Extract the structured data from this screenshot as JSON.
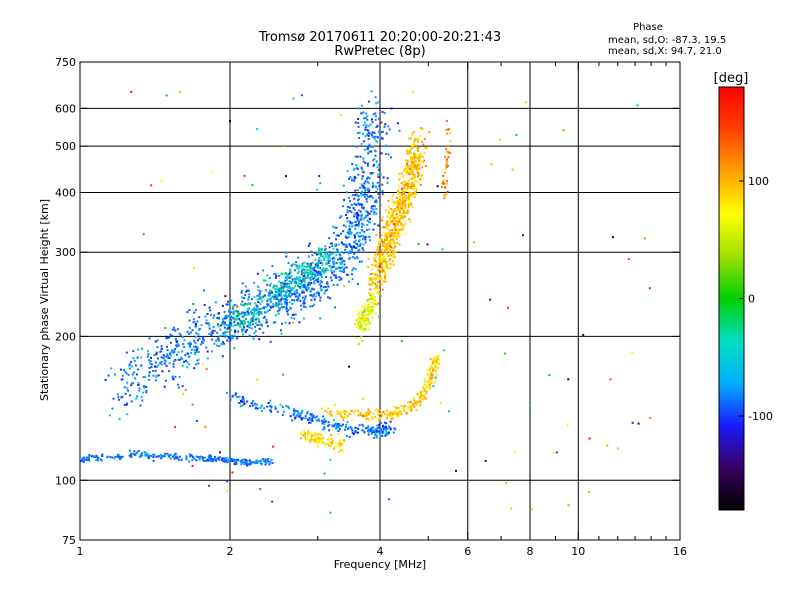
{
  "chart_data": {
    "type": "scatter",
    "title": "Tromsø 20170611 20:20:00-20:21:43",
    "subtitle": "RwPretec (8p)",
    "xlabel": "Frequency [MHz]",
    "ylabel": "Stationary phase Virtual Height [km]",
    "x_scale": "log",
    "y_scale": "log",
    "xlim": [
      1,
      16
    ],
    "ylim": [
      75,
      750
    ],
    "x_ticks": [
      1,
      2,
      4,
      6,
      8,
      10,
      16
    ],
    "x_tick_labels": [
      "1",
      "2",
      "4",
      "6",
      "8",
      "10",
      "16"
    ],
    "x_gridlines": [
      2,
      4,
      6,
      8,
      10
    ],
    "y_ticks": [
      75,
      100,
      200,
      300,
      400,
      500,
      600,
      750
    ],
    "y_tick_labels": [
      "75",
      "100",
      "200",
      "300",
      "400",
      "500",
      "600",
      "750"
    ],
    "y_gridlines": [
      100,
      200,
      300,
      400,
      500,
      600
    ],
    "grid": true,
    "colorbar": {
      "label": "[deg]",
      "range": [
        -180,
        180
      ],
      "ticks": [
        -100,
        0,
        100
      ],
      "tick_labels": [
        "-100",
        "0",
        "100"
      ],
      "colormap": "rainbow",
      "colors": [
        "#000000",
        "#3a0060",
        "#1a1aff",
        "#00b0ff",
        "#00e0c0",
        "#00d000",
        "#a0e000",
        "#ffff00",
        "#ffa000",
        "#ff4000",
        "#ff0000"
      ]
    },
    "stats": {
      "heading": "Phase",
      "line_O": "mean, sd,O: -87.3, 19.5",
      "line_X": "mean, sd,X: 94.7, 21.0",
      "mean_O": -87.3,
      "sd_O": 19.5,
      "mean_X": 94.7,
      "sd_X": 21.0
    },
    "series": [
      {
        "role": "O-mode trace (blue, phase near -90 deg)",
        "phase": -87.3,
        "phase_sd": 19.5,
        "trace": [
          [
            1.0,
            110
          ],
          [
            1.1,
            112
          ],
          [
            1.3,
            113
          ],
          [
            1.5,
            112
          ],
          [
            1.8,
            111
          ],
          [
            2.0,
            110
          ],
          [
            2.2,
            109
          ],
          [
            2.4,
            110
          ]
        ],
        "trace_upper": [
          [
            1.2,
            150
          ],
          [
            1.4,
            175
          ],
          [
            1.6,
            190
          ],
          [
            1.8,
            205
          ],
          [
            2.0,
            215
          ],
          [
            2.2,
            225
          ],
          [
            2.4,
            235
          ],
          [
            2.6,
            245
          ],
          [
            2.8,
            255
          ],
          [
            3.0,
            265
          ],
          [
            3.2,
            280
          ],
          [
            3.4,
            300
          ],
          [
            3.6,
            330
          ],
          [
            3.7,
            370
          ],
          [
            3.8,
            420
          ],
          [
            3.85,
            500
          ],
          [
            3.9,
            600
          ]
        ],
        "trace_lower": [
          [
            2.0,
            150
          ],
          [
            2.3,
            143
          ],
          [
            2.6,
            140
          ],
          [
            2.9,
            135
          ],
          [
            3.2,
            130
          ],
          [
            3.5,
            128
          ],
          [
            3.8,
            127
          ],
          [
            4.0,
            127
          ],
          [
            4.2,
            128
          ]
        ]
      },
      {
        "role": "X-mode trace (yellow-orange, phase near +95 deg)",
        "phase": 94.7,
        "phase_sd": 21.0,
        "trace_upper": [
          [
            3.9,
            260
          ],
          [
            4.0,
            280
          ],
          [
            4.1,
            300
          ],
          [
            4.2,
            320
          ],
          [
            4.3,
            340
          ],
          [
            4.4,
            370
          ],
          [
            4.5,
            400
          ],
          [
            4.6,
            430
          ],
          [
            4.7,
            460
          ],
          [
            4.8,
            500
          ]
        ],
        "trace_lower": [
          [
            3.1,
            140
          ],
          [
            3.4,
            138
          ],
          [
            3.7,
            137
          ],
          [
            4.0,
            137
          ],
          [
            4.3,
            138
          ],
          [
            4.6,
            142
          ],
          [
            4.8,
            148
          ],
          [
            5.0,
            158
          ],
          [
            5.1,
            170
          ],
          [
            5.2,
            180
          ]
        ],
        "trace_bottom": [
          [
            2.8,
            125
          ],
          [
            3.0,
            122
          ],
          [
            3.2,
            120
          ],
          [
            3.4,
            118
          ]
        ],
        "spur": [
          [
            3.6,
            210
          ],
          [
            3.7,
            215
          ],
          [
            3.8,
            225
          ],
          [
            3.9,
            240
          ]
        ],
        "edge": [
          [
            5.4,
            400
          ],
          [
            5.4,
            450
          ],
          [
            5.5,
            500
          ],
          [
            5.5,
            560
          ]
        ]
      }
    ]
  }
}
